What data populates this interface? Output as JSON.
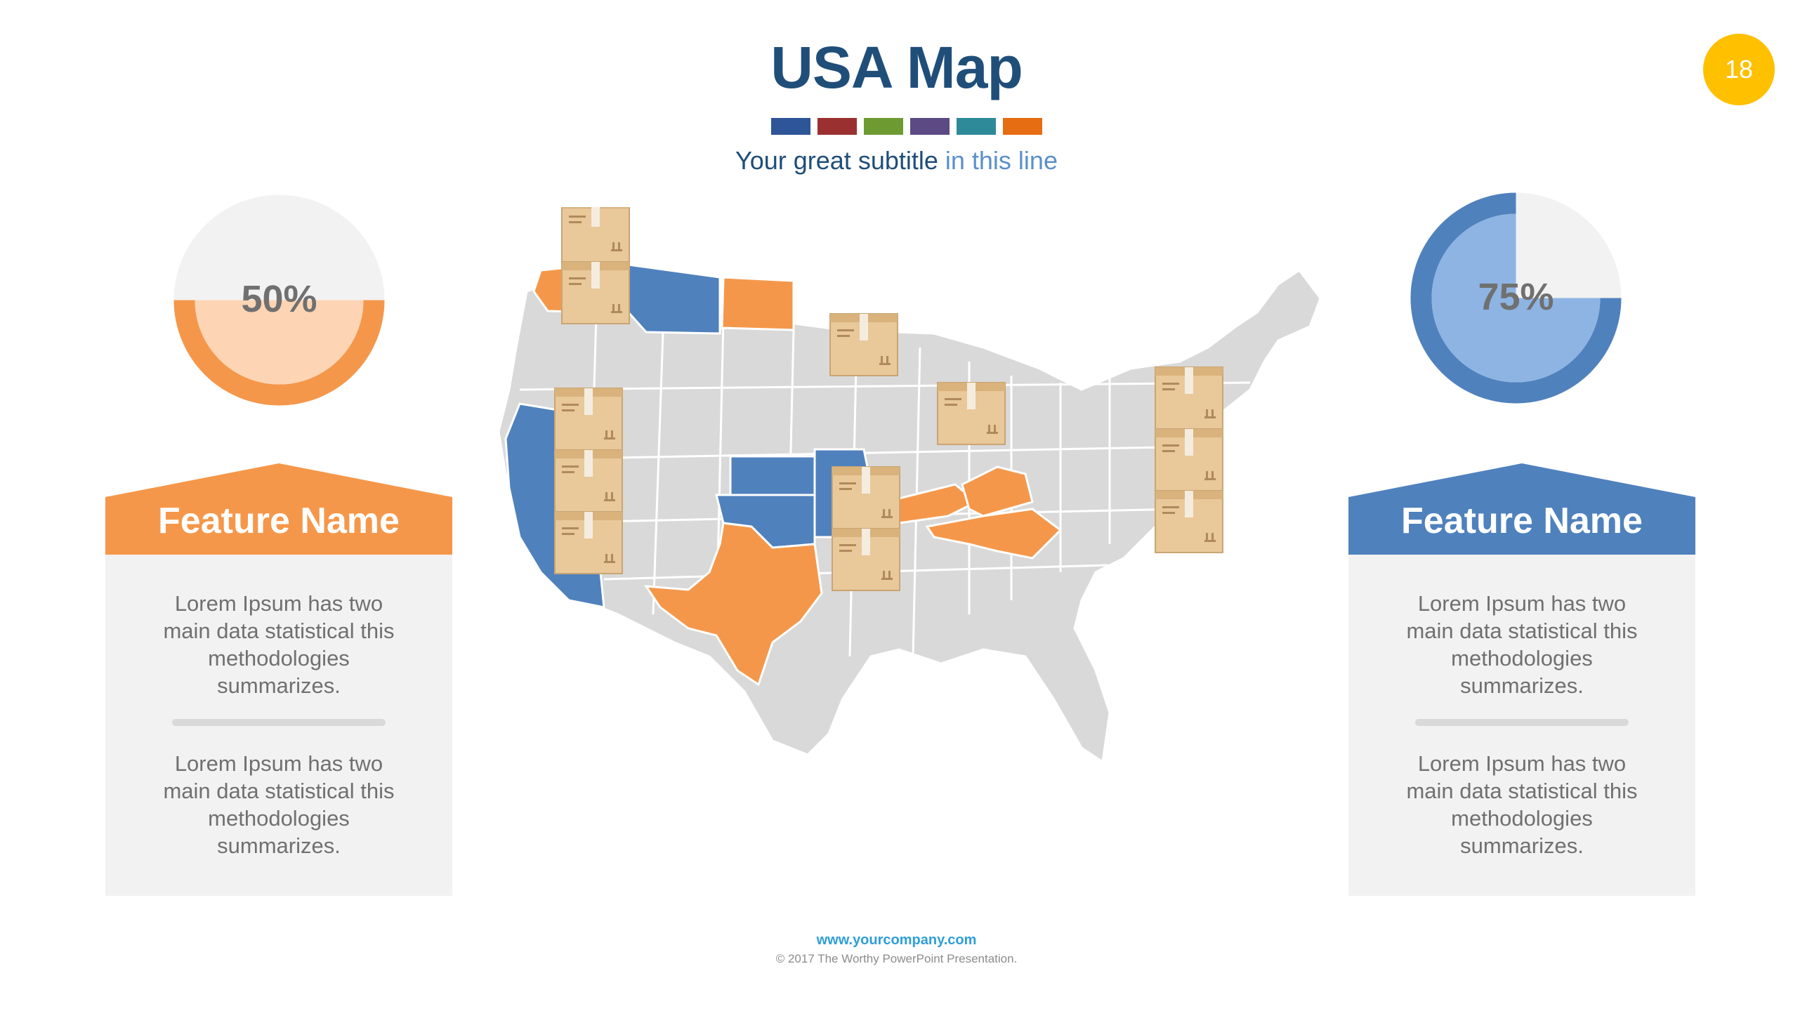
{
  "title": "USA Map",
  "subtitle": {
    "main": "Your great subtitle ",
    "accent": "in this line"
  },
  "page_number": "18",
  "color_swatches": [
    "#2e5597",
    "#9b3030",
    "#6e9a32",
    "#5c4a85",
    "#2e8a99",
    "#e66d12"
  ],
  "left_gauge": {
    "percent_label": "50%",
    "value": 0.5,
    "color": "#f5974a",
    "fill": "#fdd5b5"
  },
  "right_gauge": {
    "percent_label": "75%",
    "value": 0.75,
    "color": "#4f81bd",
    "fill": "#8eb4e3"
  },
  "left_panel": {
    "feature_name": "Feature Name",
    "color": "#f5974a",
    "paragraph_1": "Lorem Ipsum has two main data statistical this methodologies summarizes.",
    "paragraph_2": "Lorem Ipsum has two main data statistical this methodologies summarizes."
  },
  "right_panel": {
    "feature_name": "Feature Name",
    "color": "#4f81bd",
    "paragraph_1": "Lorem Ipsum has two main data statistical this methodologies summarizes.",
    "paragraph_2": "Lorem Ipsum has two main data statistical this methodologies summarizes."
  },
  "map": {
    "highlighted_blue": [
      "California",
      "Montana",
      "Kansas",
      "Missouri",
      "Oklahoma"
    ],
    "highlighted_orange": [
      "Washington",
      "North Dakota",
      "Texas",
      "Kentucky",
      "Virginia",
      "North Carolina"
    ],
    "base_color": "#d9d9d9",
    "box_icons": "cardboard-box-icon"
  },
  "footer": {
    "url": "www.yourcompany.com",
    "copyright": "© 2017 The Worthy PowerPoint Presentation."
  }
}
